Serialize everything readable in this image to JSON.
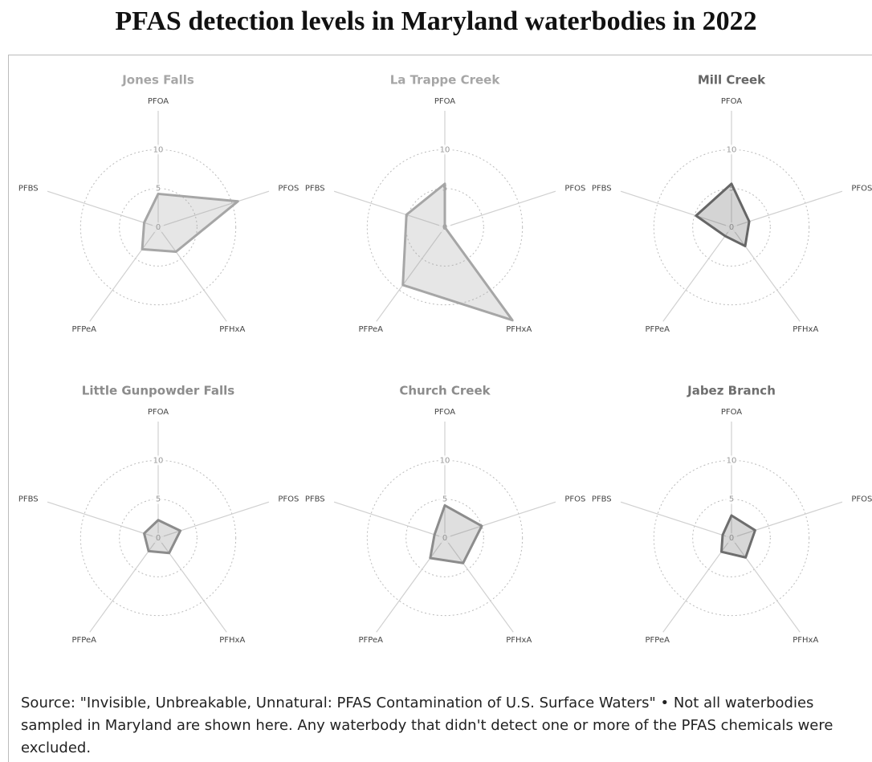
{
  "title": "PFAS detection levels in Maryland waterbodies in 2022",
  "source": "Source: \"Invisible, Unbreakable, Unnatural: PFAS Contamination of U.S. Surface Waters\" • Not all waterbodies sampled in Maryland are shown here. Any waterbody that didn't detect one or more of the PFAS chemicals were excluded.",
  "chart_data": [
    {
      "type": "radar",
      "title": "Jones Falls",
      "categories": [
        "PFOA",
        "PFOS",
        "PFHxA",
        "PFPeA",
        "PFBS"
      ],
      "values": [
        4.3,
        10.8,
        3.9,
        3.5,
        1.9
      ],
      "ylim": [
        0,
        15
      ],
      "yticks": [
        0,
        5,
        10
      ],
      "color": "#a6a6a6"
    },
    {
      "type": "radar",
      "title": "La Trappe Creek",
      "categories": [
        "PFOA",
        "PFOS",
        "PFHxA",
        "PFPeA",
        "PFBS"
      ],
      "values": [
        5.6,
        0,
        14.8,
        9.2,
        5.2
      ],
      "ylim": [
        0,
        15
      ],
      "yticks": [
        0,
        5,
        10
      ],
      "color": "#a6a6a6"
    },
    {
      "type": "radar",
      "title": "Mill Creek",
      "categories": [
        "PFOA",
        "PFOS",
        "PFHxA",
        "PFPeA",
        "PFBS"
      ],
      "values": [
        5.6,
        2.4,
        3.0,
        1.4,
        4.8
      ],
      "ylim": [
        0,
        15
      ],
      "yticks": [
        0,
        5,
        10
      ],
      "color": "#666666"
    },
    {
      "type": "radar",
      "title": "Little Gunpowder Falls",
      "categories": [
        "PFOA",
        "PFOS",
        "PFHxA",
        "PFPeA",
        "PFBS"
      ],
      "values": [
        2.3,
        3.0,
        2.4,
        2.1,
        1.9
      ],
      "ylim": [
        0,
        15
      ],
      "yticks": [
        0,
        5,
        10
      ],
      "color": "#8c8c8c"
    },
    {
      "type": "radar",
      "title": "Church Creek",
      "categories": [
        "PFOA",
        "PFOS",
        "PFHxA",
        "PFPeA",
        "PFBS"
      ],
      "values": [
        4.2,
        5.0,
        4.0,
        3.2,
        1.4
      ],
      "ylim": [
        0,
        15
      ],
      "yticks": [
        0,
        5,
        10
      ],
      "color": "#8c8c8c"
    },
    {
      "type": "radar",
      "title": "Jabez Branch",
      "categories": [
        "PFOA",
        "PFOS",
        "PFHxA",
        "PFPeA",
        "PFBS"
      ],
      "values": [
        2.9,
        3.2,
        3.1,
        2.2,
        1.2
      ],
      "ylim": [
        0,
        15
      ],
      "yticks": [
        0,
        5,
        10
      ],
      "color": "#6e6e6e"
    }
  ]
}
